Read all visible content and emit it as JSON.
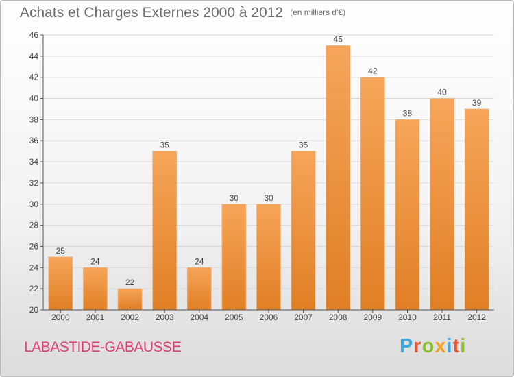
{
  "title": "Achats et Charges Externes 2000 à 2012",
  "subtitle": "(en milliers d'€)",
  "town": "LABASTIDE-GABAUSSE",
  "logo": "Proxiti",
  "colors": {
    "bar_light": "#f6a55a",
    "bar_dark": "#e07f25",
    "grid": "#d8d8d8",
    "town": "#e03c6e"
  },
  "chart_data": {
    "type": "bar",
    "categories": [
      "2000",
      "2001",
      "2002",
      "2003",
      "2004",
      "2005",
      "2006",
      "2007",
      "2008",
      "2009",
      "2010",
      "2011",
      "2012"
    ],
    "values": [
      25,
      24,
      22,
      35,
      24,
      30,
      30,
      35,
      45,
      42,
      38,
      40,
      39
    ],
    "ylim": [
      20,
      46
    ],
    "yticks": [
      20,
      22,
      24,
      26,
      28,
      30,
      32,
      34,
      36,
      38,
      40,
      42,
      44,
      46
    ],
    "title": "Achats et Charges Externes 2000 à 2012",
    "xlabel": "",
    "ylabel": "",
    "grid": true
  }
}
